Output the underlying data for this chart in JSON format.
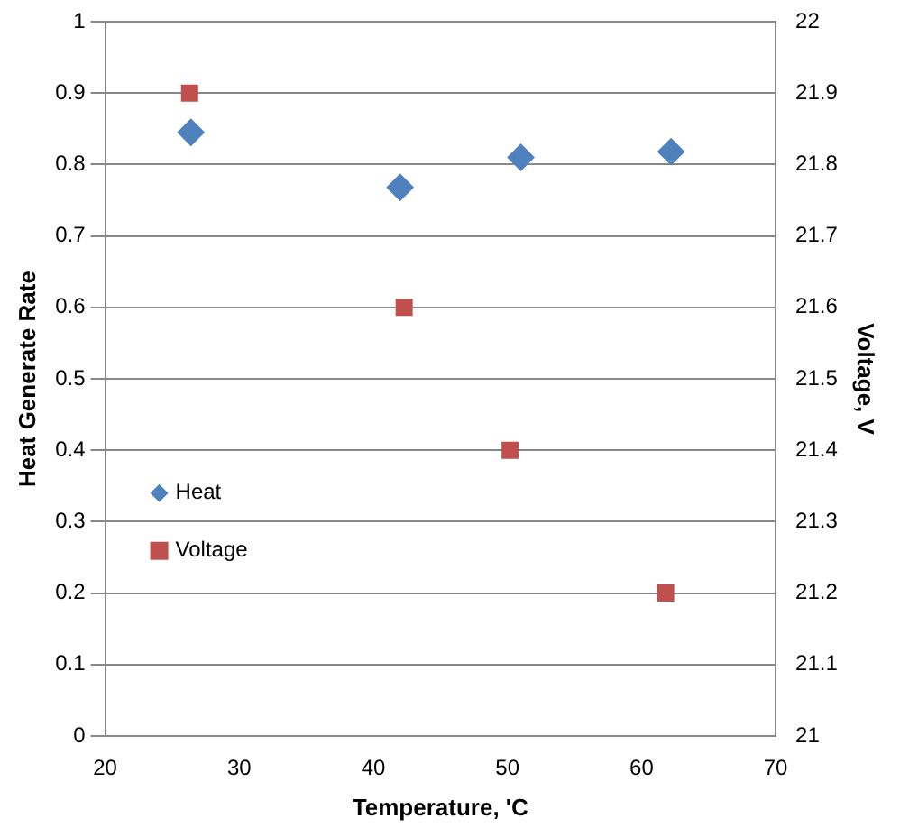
{
  "chart_data": {
    "type": "scatter",
    "xlabel": "Temperature, 'C",
    "ylabel": "Heat Generate Rate",
    "y2label": "Voltage, V",
    "xlim": [
      20,
      70
    ],
    "xticks": [
      20,
      30,
      40,
      50,
      60,
      70
    ],
    "ylim": [
      0,
      1
    ],
    "yticks": [
      0,
      0.1,
      0.2,
      0.3,
      0.4,
      0.5,
      0.6,
      0.7,
      0.8,
      0.9,
      1
    ],
    "y2lim": [
      21,
      22
    ],
    "y2ticks": [
      21,
      21.1,
      21.2,
      21.3,
      21.4,
      21.5,
      21.6,
      21.7,
      21.8,
      21.9,
      22
    ],
    "grid": "y",
    "legend": "left",
    "series": [
      {
        "name": "Heat",
        "color": "#4f81bd",
        "marker": "diamond",
        "x": [
          26.4,
          42,
          51,
          62.2
        ],
        "values": [
          0.845,
          0.768,
          0.81,
          0.818
        ]
      },
      {
        "name": "Voltage",
        "color": "#c0504d",
        "marker": "square",
        "axis": "y2",
        "x": [
          26.3,
          42.3,
          50.2,
          61.8
        ],
        "values": [
          21.9,
          21.6,
          21.4,
          21.2
        ]
      }
    ]
  }
}
